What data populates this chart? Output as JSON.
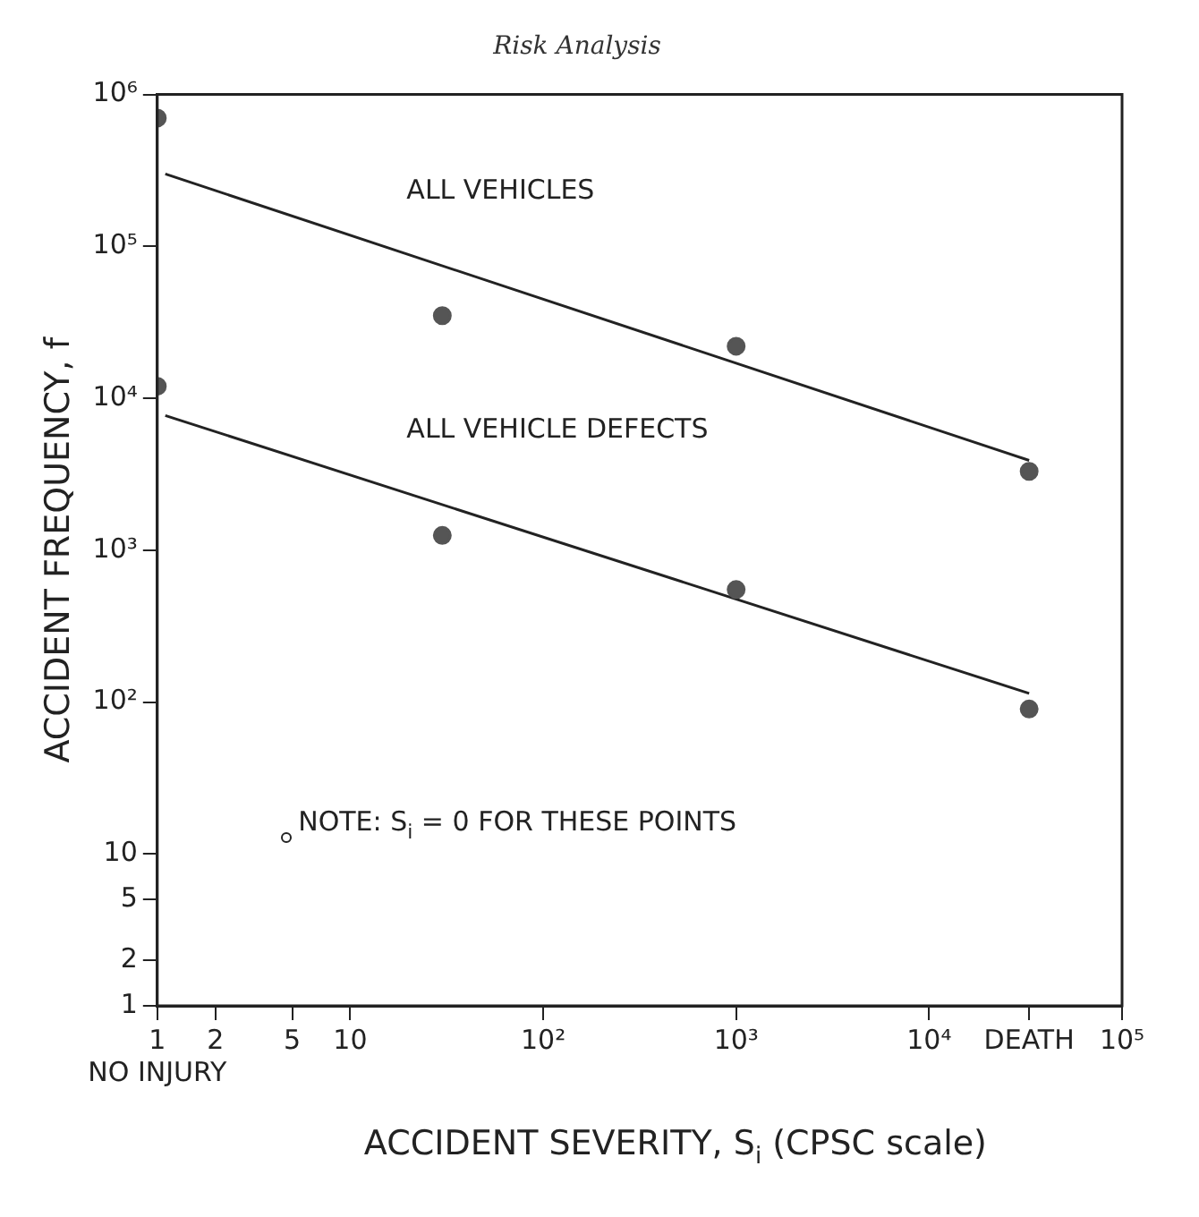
{
  "chart_data": {
    "type": "scatter",
    "title": "Risk Analysis",
    "xlabel": "ACCIDENT SEVERITY, S$_{i}$ (CPSC scale)",
    "ylabel": "ACCIDENT FREQUENCY, f",
    "log": "xy",
    "grid": false,
    "legend": false,
    "marker": "circle",
    "xlim": [
      1,
      100000
    ],
    "ylim": [
      1,
      1000000
    ],
    "xticks": [
      {
        "value": 1,
        "label": "1\nNO INJURY"
      },
      2,
      5,
      10,
      {
        "value": 100,
        "label": "10²"
      },
      {
        "value": 1000,
        "label": "10³"
      },
      {
        "value": 10000,
        "label": "10⁴"
      },
      {
        "value": 33000,
        "label": "DEATH"
      },
      {
        "value": 100000,
        "label": "10⁵"
      }
    ],
    "yticks": [
      1,
      2,
      5,
      10,
      {
        "value": 100,
        "label": "10²"
      },
      {
        "value": 1000,
        "label": "10³"
      },
      {
        "value": 10000,
        "label": "10⁴"
      },
      {
        "value": 100000,
        "label": "10⁵"
      },
      {
        "value": 1000000,
        "label": "10⁶"
      }
    ],
    "series": [
      {
        "color": "#555555",
        "x": [
          1,
          30,
          1000,
          33000
        ],
        "values": [
          700000,
          35000,
          22000,
          3300
        ]
      },
      {
        "color": "#555555",
        "x": [
          1,
          30,
          1000,
          33000
        ],
        "values": [
          12000,
          1250,
          550,
          90
        ]
      },
      {
        "type": "line",
        "name": "ALL VEHICLES",
        "color": "#222222",
        "marker": "none",
        "x": [
          1.1,
          33000
        ],
        "values": [
          300000,
          3900
        ]
      },
      {
        "type": "line",
        "name": "ALL VEHICLE DEFECTS",
        "color": "#222222",
        "marker": "none",
        "x": [
          1.1,
          33000
        ],
        "values": [
          7700,
          114
        ]
      }
    ],
    "annotations": [
      "NOTE: S$_{i}$ = 0 FOR THESE POINTS"
    ]
  }
}
